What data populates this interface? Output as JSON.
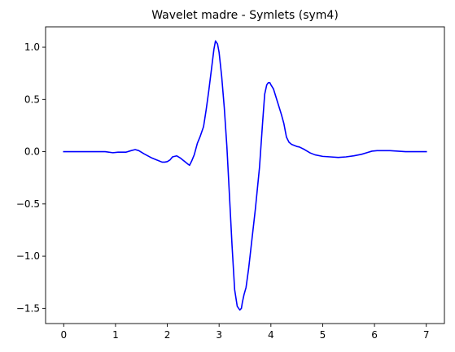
{
  "chart_data": {
    "type": "line",
    "title": "Wavelet madre - Symlets (sym4)",
    "xlabel": "",
    "ylabel": "",
    "xlim": [
      -0.35,
      7.35
    ],
    "ylim": [
      -1.645,
      1.195
    ],
    "xticks": [
      0,
      1,
      2,
      3,
      4,
      5,
      6,
      7
    ],
    "yticks": [
      -1.5,
      -1.0,
      -0.5,
      0.0,
      0.5,
      1.0
    ],
    "ytick_labels": [
      "−1.5",
      "−1.0",
      "−0.5",
      "0.0",
      "0.5",
      "1.0"
    ],
    "grid": false,
    "legend": false,
    "color": "#0000ff",
    "series": [
      {
        "x": [
          0.0,
          0.3,
          0.65,
          0.8,
          0.95,
          1.05,
          1.2,
          1.3,
          1.38,
          1.45,
          1.55,
          1.7,
          1.8,
          1.9,
          1.95,
          2.0,
          2.05,
          2.1,
          2.18,
          2.25,
          2.3,
          2.35,
          2.4,
          2.43,
          2.47,
          2.52,
          2.58,
          2.63,
          2.7,
          2.75,
          2.8,
          2.85,
          2.9,
          2.93,
          2.97,
          3.0,
          3.05,
          3.1,
          3.15,
          3.2,
          3.25,
          3.3,
          3.35,
          3.4,
          3.43,
          3.45,
          3.48,
          3.52,
          3.57,
          3.62,
          3.7,
          3.78,
          3.84,
          3.88,
          3.92,
          3.95,
          3.98,
          4.0,
          4.05,
          4.1,
          4.15,
          4.2,
          4.25,
          4.3,
          4.35,
          4.4,
          4.45,
          4.5,
          4.55,
          4.65,
          4.75,
          4.85,
          5.0,
          5.15,
          5.3,
          5.45,
          5.6,
          5.75,
          5.85,
          5.95,
          6.05,
          6.3,
          6.6,
          7.0
        ],
        "y": [
          0.0,
          0.0,
          0.0,
          0.0,
          -0.01,
          -0.005,
          -0.005,
          0.01,
          0.02,
          0.01,
          -0.02,
          -0.06,
          -0.08,
          -0.1,
          -0.1,
          -0.095,
          -0.08,
          -0.05,
          -0.04,
          -0.06,
          -0.08,
          -0.1,
          -0.12,
          -0.13,
          -0.09,
          -0.03,
          0.08,
          0.14,
          0.24,
          0.4,
          0.58,
          0.78,
          0.98,
          1.06,
          1.03,
          0.95,
          0.72,
          0.42,
          0.05,
          -0.42,
          -0.9,
          -1.32,
          -1.48,
          -1.515,
          -1.5,
          -1.44,
          -1.37,
          -1.3,
          -1.12,
          -0.9,
          -0.55,
          -0.15,
          0.28,
          0.55,
          0.64,
          0.66,
          0.66,
          0.64,
          0.6,
          0.52,
          0.44,
          0.36,
          0.27,
          0.14,
          0.09,
          0.07,
          0.06,
          0.05,
          0.045,
          0.02,
          -0.01,
          -0.03,
          -0.045,
          -0.05,
          -0.055,
          -0.05,
          -0.04,
          -0.025,
          -0.01,
          0.005,
          0.01,
          0.01,
          0.0,
          0.0
        ]
      }
    ]
  }
}
